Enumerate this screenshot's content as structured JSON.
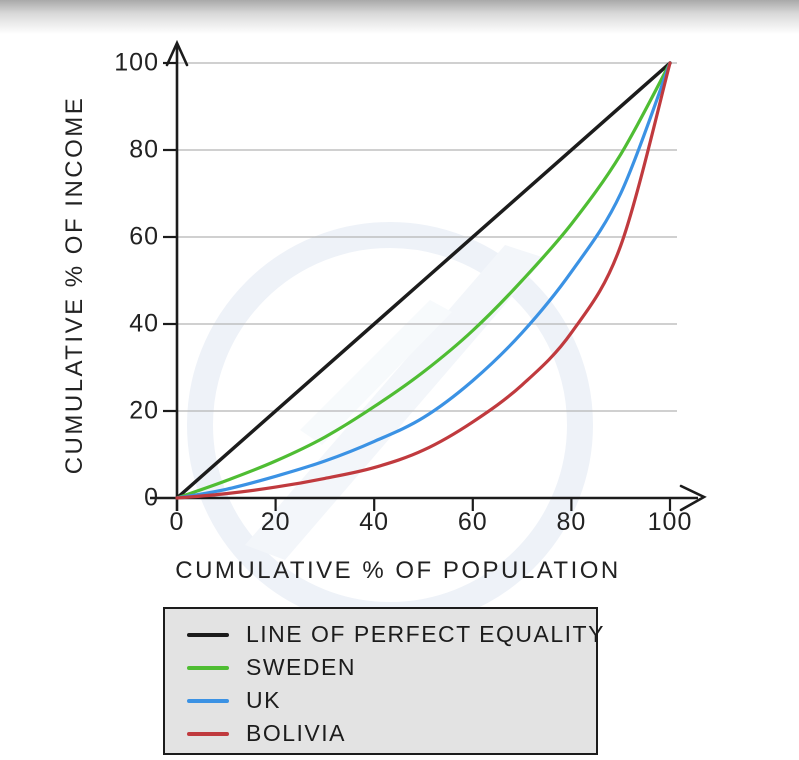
{
  "chart_data": {
    "type": "line",
    "title": "",
    "xlabel": "CUMULATIVE % OF POPULATION",
    "ylabel": "CUMULATIVE % OF INCOME",
    "xlim": [
      0,
      100
    ],
    "ylim": [
      0,
      100
    ],
    "x_ticks": [
      0,
      20,
      40,
      60,
      80,
      100
    ],
    "y_ticks": [
      0,
      20,
      40,
      60,
      80,
      100
    ],
    "grid": "horizontal",
    "legend_position": "below",
    "axis_color": "#1c1c1c",
    "gridline_color": "#b5b5b5",
    "series": [
      {
        "name": "LINE OF PERFECT EQUALITY",
        "color": "#1c1c1c",
        "width": 3.5,
        "points": [
          [
            0,
            0
          ],
          [
            100,
            100
          ]
        ]
      },
      {
        "name": "SWEDEN",
        "color": "#4fbd33",
        "width": 3.2,
        "points": [
          [
            0,
            0
          ],
          [
            10,
            4
          ],
          [
            20,
            8.5
          ],
          [
            30,
            14
          ],
          [
            40,
            21
          ],
          [
            50,
            29
          ],
          [
            60,
            38.5
          ],
          [
            70,
            50
          ],
          [
            80,
            63
          ],
          [
            90,
            79
          ],
          [
            100,
            100
          ]
        ]
      },
      {
        "name": "UK",
        "color": "#3b92e4",
        "width": 3.2,
        "points": [
          [
            0,
            0
          ],
          [
            10,
            2
          ],
          [
            20,
            5
          ],
          [
            30,
            8.5
          ],
          [
            40,
            13
          ],
          [
            50,
            18.5
          ],
          [
            60,
            27
          ],
          [
            70,
            38
          ],
          [
            80,
            52
          ],
          [
            90,
            70
          ],
          [
            100,
            100
          ]
        ]
      },
      {
        "name": "BOLIVIA",
        "color": "#c03a3e",
        "width": 3.2,
        "points": [
          [
            0,
            0
          ],
          [
            10,
            1
          ],
          [
            20,
            2.5
          ],
          [
            30,
            4.5
          ],
          [
            40,
            7
          ],
          [
            50,
            11
          ],
          [
            60,
            17.5
          ],
          [
            70,
            26
          ],
          [
            80,
            38
          ],
          [
            90,
            58
          ],
          [
            100,
            100
          ]
        ]
      }
    ]
  },
  "decor": {
    "top_gradient_from": "#a9a9a9",
    "top_gradient_to": "#ffffff",
    "legend_background": "#e3e3e3",
    "watermark_color": "#eef2f8"
  }
}
